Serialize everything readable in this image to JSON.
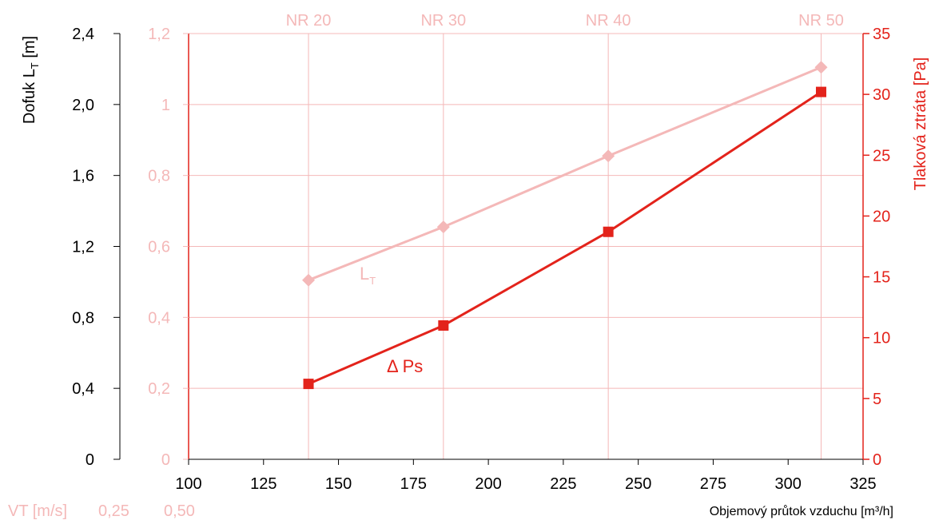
{
  "colors": {
    "pink": "#f4b8b8",
    "red": "#e3231b",
    "black": "#000000"
  },
  "chart_data": {
    "type": "line",
    "x_axis": {
      "label": "Objemový průtok vzduchu [m³/h]",
      "range": [
        100,
        325
      ],
      "ticks": [
        "100",
        "125",
        "150",
        "175",
        "200",
        "225",
        "250",
        "275",
        "300",
        "325"
      ]
    },
    "y_axis_left_outer": {
      "label_main": "Dofuk L",
      "label_sub": "T",
      "label_unit": " [m]",
      "range": [
        0,
        2.4
      ],
      "ticks": [
        "0",
        "0,4",
        "0,8",
        "1,2",
        "1,6",
        "2,0",
        "2,4"
      ]
    },
    "y_axis_left_inner": {
      "label": "",
      "range": [
        0,
        1.2
      ],
      "ticks": [
        "0",
        "0,2",
        "0,4",
        "0,6",
        "0,8",
        "1",
        "1,2"
      ]
    },
    "y_axis_right": {
      "label": "Tlaková ztráta [Pa]",
      "range": [
        0,
        35
      ],
      "ticks": [
        "0",
        "5",
        "10",
        "15",
        "20",
        "25",
        "30",
        "35"
      ]
    },
    "nr_labels": [
      {
        "x": 140,
        "label": "NR 20"
      },
      {
        "x": 185,
        "label": "NR 30"
      },
      {
        "x": 240,
        "label": "NR 40"
      },
      {
        "x": 311,
        "label": "NR 50"
      }
    ],
    "vt_row": {
      "label": "VT [m/s]",
      "values": [
        "0,25",
        "0,50"
      ]
    },
    "series": [
      {
        "name": "L",
        "name_sub": "T",
        "axis": "left_outer",
        "marker": "diamond",
        "x": [
          140,
          185,
          240,
          311
        ],
        "y": [
          1.01,
          1.31,
          1.71,
          2.21
        ]
      },
      {
        "name": "Δ Ps",
        "axis": "right",
        "marker": "square",
        "x": [
          140,
          185,
          240,
          311
        ],
        "y": [
          6.2,
          11.0,
          18.7,
          30.2
        ]
      }
    ],
    "grid": true
  }
}
